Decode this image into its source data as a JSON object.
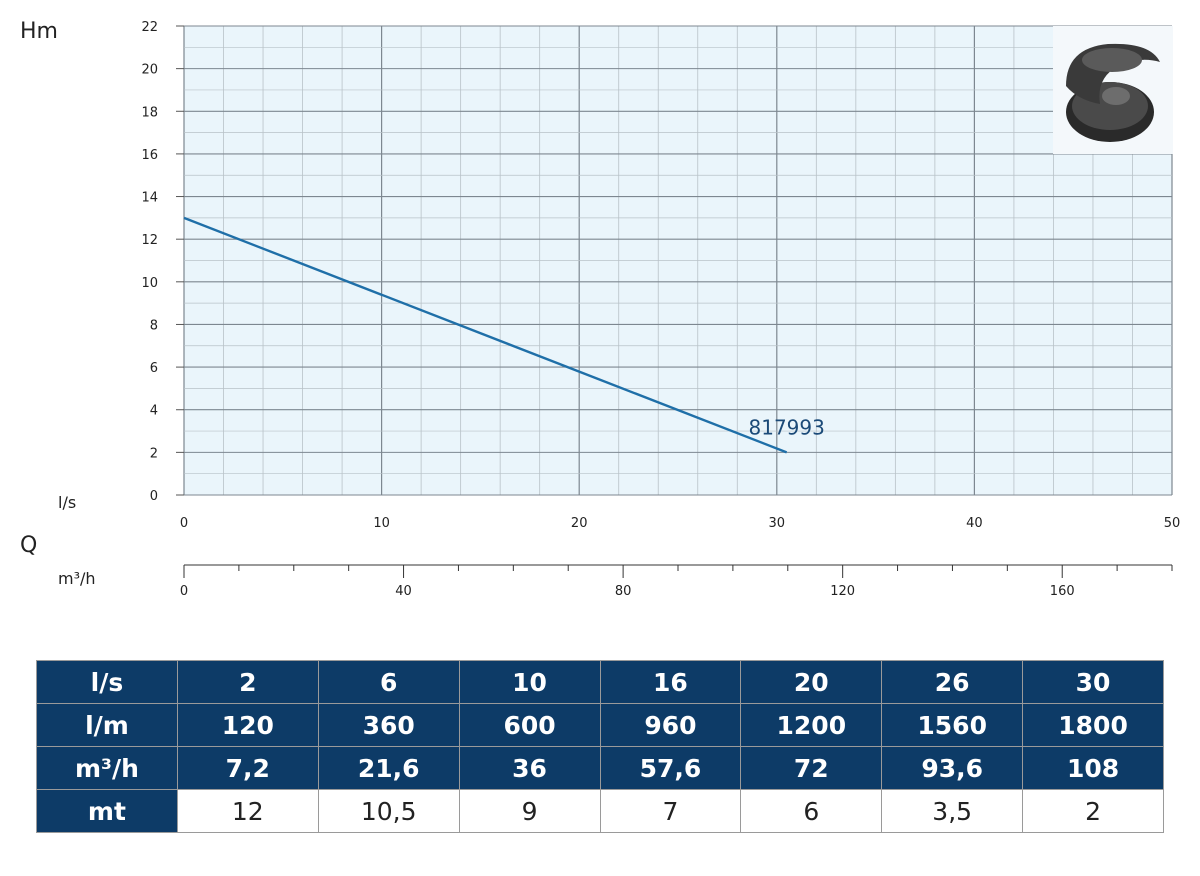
{
  "chart_data": {
    "type": "line",
    "y_axis": {
      "label": "Hm",
      "ticks": [
        0,
        2,
        4,
        6,
        8,
        10,
        12,
        14,
        16,
        18,
        20,
        22
      ],
      "ylim": [
        0,
        22
      ]
    },
    "x_axis": {
      "label": "Q",
      "unit": "l/s",
      "ticks": [
        0,
        10,
        20,
        30,
        40,
        50
      ],
      "xlim": [
        0,
        50
      ]
    },
    "x_axis_secondary": {
      "unit": "m³/h",
      "ticks": [
        0,
        40,
        80,
        120,
        160
      ],
      "xlim": [
        0,
        180
      ]
    },
    "grid": true,
    "series": [
      {
        "name": "817993",
        "color": "#1f6fa8",
        "x": [
          0,
          30.5
        ],
        "y": [
          13,
          2
        ]
      }
    ],
    "colors": {
      "plot_bg": "#eaf5fb",
      "grid_minor": "#b8c2c8",
      "grid_major": "#7d8790",
      "table_header": "#0d3b67"
    }
  },
  "table": {
    "rows": [
      {
        "head": "l/s",
        "values": [
          "2",
          "6",
          "10",
          "16",
          "20",
          "26",
          "30"
        ],
        "style": "hdr"
      },
      {
        "head": "l/m",
        "values": [
          "120",
          "360",
          "600",
          "960",
          "1200",
          "1560",
          "1800"
        ],
        "style": "hdr"
      },
      {
        "head": "m³/h",
        "values": [
          "7,2",
          "21,6",
          "36",
          "57,6",
          "72",
          "93,6",
          "108"
        ],
        "style": "hdr"
      },
      {
        "head": "mt",
        "values": [
          "12",
          "10,5",
          "9",
          "7",
          "6",
          "3,5",
          "2"
        ],
        "style": "val"
      }
    ]
  },
  "image": {
    "icon": "pump-impeller-icon"
  }
}
